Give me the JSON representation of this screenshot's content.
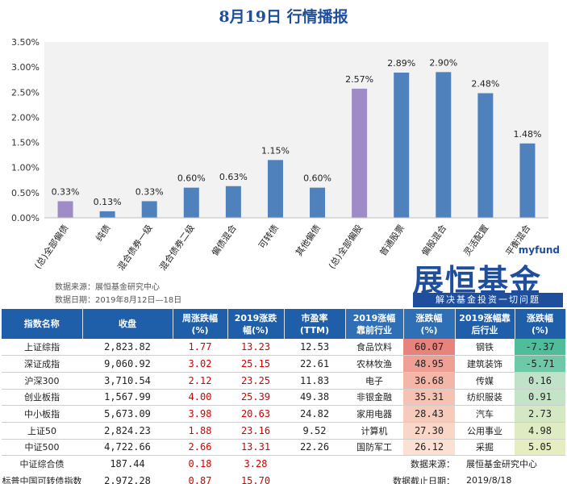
{
  "title": "8月19日  行情播报",
  "chart_data": {
    "type": "bar",
    "categories": [
      "(总)全部偏债",
      "纯债",
      "混合债券一级",
      "混合债券二级",
      "偏债混合",
      "可转债",
      "其他偏债",
      "(总)全部偏股",
      "普通股票",
      "偏股混合",
      "灵活配置",
      "平衡混合"
    ],
    "values": [
      0.33,
      0.13,
      0.33,
      0.6,
      0.63,
      1.15,
      0.6,
      2.57,
      2.89,
      2.9,
      2.48,
      1.48
    ],
    "value_labels": [
      "0.33%",
      "0.13%",
      "0.33%",
      "0.60%",
      "0.63%",
      "1.15%",
      "0.60%",
      "2.57%",
      "2.89%",
      "2.90%",
      "2.48%",
      "1.48%"
    ],
    "ylim": [
      0,
      3.5
    ],
    "yticks": [
      "0.00%",
      "0.50%",
      "1.00%",
      "1.50%",
      "2.00%",
      "2.50%",
      "3.00%",
      "3.50%"
    ],
    "grid": false,
    "highlight_indices": [
      0,
      7
    ],
    "colors": {
      "normal": "#4f81bd",
      "highlight": "#9f8cc6",
      "plot_bg": "#f2f2f2"
    }
  },
  "source_lines": [
    "数据来源：展恒基金研究中心",
    "数据日期：2019年8月12日—18日"
  ],
  "logo": {
    "small": "myfund",
    "main": "展恒基金",
    "tagline": "解决基金投资一切问题"
  },
  "table": {
    "headers": [
      "指数名称",
      "收盘",
      "周涨跌幅\n(%)",
      "2019涨跌\n幅(%)",
      "市盈率\n(TTM)",
      "2019涨幅\n靠前行业",
      "涨跌幅\n(%)",
      "2019涨幅靠\n后行业",
      "涨跌幅\n(%)"
    ],
    "rows": [
      [
        "上证综指",
        "2,823.82",
        "1.77",
        "13.23",
        "12.53",
        "食品饮料",
        "60.07",
        "钢铁",
        "-7.37"
      ],
      [
        "深证成指",
        "9,060.92",
        "3.02",
        "25.15",
        "22.61",
        "农林牧渔",
        "48.95",
        "建筑装饰",
        "-5.71"
      ],
      [
        "沪深300",
        "3,710.54",
        "2.12",
        "23.25",
        "11.83",
        "电子",
        "36.68",
        "传媒",
        "0.16"
      ],
      [
        "创业板指",
        "1,567.99",
        "4.00",
        "25.39",
        "49.38",
        "非银金融",
        "35.31",
        "纺织服装",
        "0.91"
      ],
      [
        "中小板指",
        "5,673.09",
        "3.98",
        "20.63",
        "24.82",
        "家用电器",
        "28.43",
        "汽车",
        "2.73"
      ],
      [
        "上证50",
        "2,824.23",
        "1.88",
        "23.16",
        "9.52",
        "计算机",
        "27.30",
        "公用事业",
        "4.98"
      ],
      [
        "中证500",
        "4,722.66",
        "2.66",
        "13.31",
        "22.26",
        "国防军工",
        "26.12",
        "采掘",
        "5.05"
      ]
    ],
    "extra_rows": [
      [
        "中证综合债",
        "187.44",
        "0.18",
        "3.28"
      ],
      [
        "标普中国可转债指数",
        "2,972.28",
        "0.87",
        "15.70"
      ]
    ],
    "footnotes": [
      {
        "label": "数据来源：",
        "value": "展恒基金研究中心"
      },
      {
        "label": "数据截止日期：",
        "value": "2019/8/18"
      }
    ],
    "top_colors": [
      "#e8827c",
      "#ef9f93",
      "#f3b6a8",
      "#f6c2b4",
      "#f7cbbc",
      "#f9d6c8",
      "#fbe0d3"
    ],
    "bottom_colors": [
      "#4fbd9a",
      "#6fc9a8",
      "#bfe2c8",
      "#c4e4c8",
      "#d4e8c4",
      "#dfebc2",
      "#e6edc1"
    ]
  }
}
